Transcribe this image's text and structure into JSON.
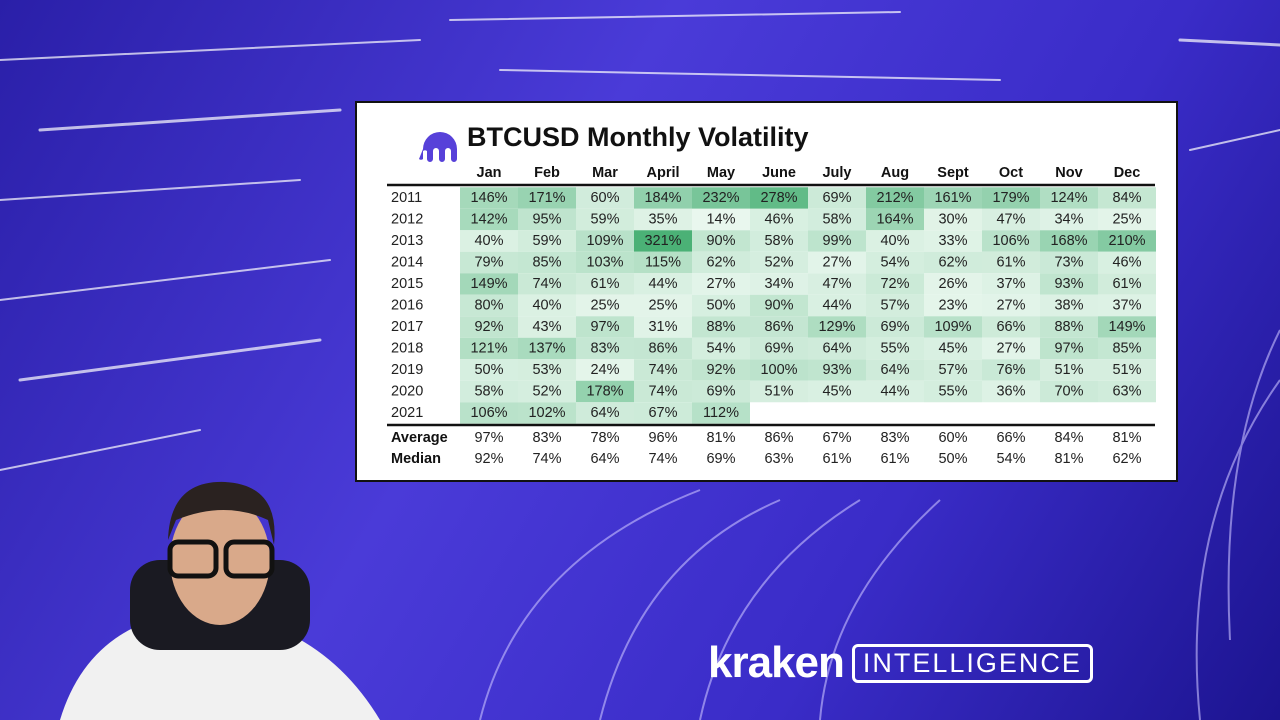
{
  "title": "BTCUSD Monthly Volatility",
  "table": {
    "columns": [
      "Jan",
      "Feb",
      "Mar",
      "April",
      "May",
      "June",
      "July",
      "Aug",
      "Sept",
      "Oct",
      "Nov",
      "Dec"
    ],
    "rows": [
      {
        "label": "2011",
        "cells": [
          "146%",
          "171%",
          "60%",
          "184%",
          "232%",
          "278%",
          "69%",
          "212%",
          "161%",
          "179%",
          "124%",
          "84%"
        ]
      },
      {
        "label": "2012",
        "cells": [
          "142%",
          "95%",
          "59%",
          "35%",
          "14%",
          "46%",
          "58%",
          "164%",
          "30%",
          "47%",
          "34%",
          "25%"
        ]
      },
      {
        "label": "2013",
        "cells": [
          "40%",
          "59%",
          "109%",
          "321%",
          "90%",
          "58%",
          "99%",
          "40%",
          "33%",
          "106%",
          "168%",
          "210%"
        ]
      },
      {
        "label": "2014",
        "cells": [
          "79%",
          "85%",
          "103%",
          "115%",
          "62%",
          "52%",
          "27%",
          "54%",
          "62%",
          "61%",
          "73%",
          "46%"
        ]
      },
      {
        "label": "2015",
        "cells": [
          "149%",
          "74%",
          "61%",
          "44%",
          "27%",
          "34%",
          "47%",
          "72%",
          "26%",
          "37%",
          "93%",
          "61%"
        ]
      },
      {
        "label": "2016",
        "cells": [
          "80%",
          "40%",
          "25%",
          "25%",
          "50%",
          "90%",
          "44%",
          "57%",
          "23%",
          "27%",
          "38%",
          "37%"
        ]
      },
      {
        "label": "2017",
        "cells": [
          "92%",
          "43%",
          "97%",
          "31%",
          "88%",
          "86%",
          "129%",
          "69%",
          "109%",
          "66%",
          "88%",
          "149%"
        ]
      },
      {
        "label": "2018",
        "cells": [
          "121%",
          "137%",
          "83%",
          "86%",
          "54%",
          "69%",
          "64%",
          "55%",
          "45%",
          "27%",
          "97%",
          "85%"
        ]
      },
      {
        "label": "2019",
        "cells": [
          "50%",
          "53%",
          "24%",
          "74%",
          "92%",
          "100%",
          "93%",
          "64%",
          "57%",
          "76%",
          "51%",
          "51%"
        ]
      },
      {
        "label": "2020",
        "cells": [
          "58%",
          "52%",
          "178%",
          "74%",
          "69%",
          "51%",
          "45%",
          "44%",
          "55%",
          "36%",
          "70%",
          "63%"
        ]
      },
      {
        "label": "2021",
        "cells": [
          "106%",
          "102%",
          "64%",
          "67%",
          "112%"
        ]
      }
    ],
    "summary": [
      {
        "label": "Average",
        "cells": [
          "97%",
          "83%",
          "78%",
          "96%",
          "81%",
          "86%",
          "67%",
          "83%",
          "60%",
          "66%",
          "84%",
          "81%"
        ]
      },
      {
        "label": "Median",
        "cells": [
          "92%",
          "74%",
          "64%",
          "74%",
          "69%",
          "63%",
          "61%",
          "61%",
          "50%",
          "54%",
          "81%",
          "62%"
        ]
      }
    ]
  },
  "brand": {
    "name": "kraken",
    "tag": "INTELLIGENCE"
  }
}
